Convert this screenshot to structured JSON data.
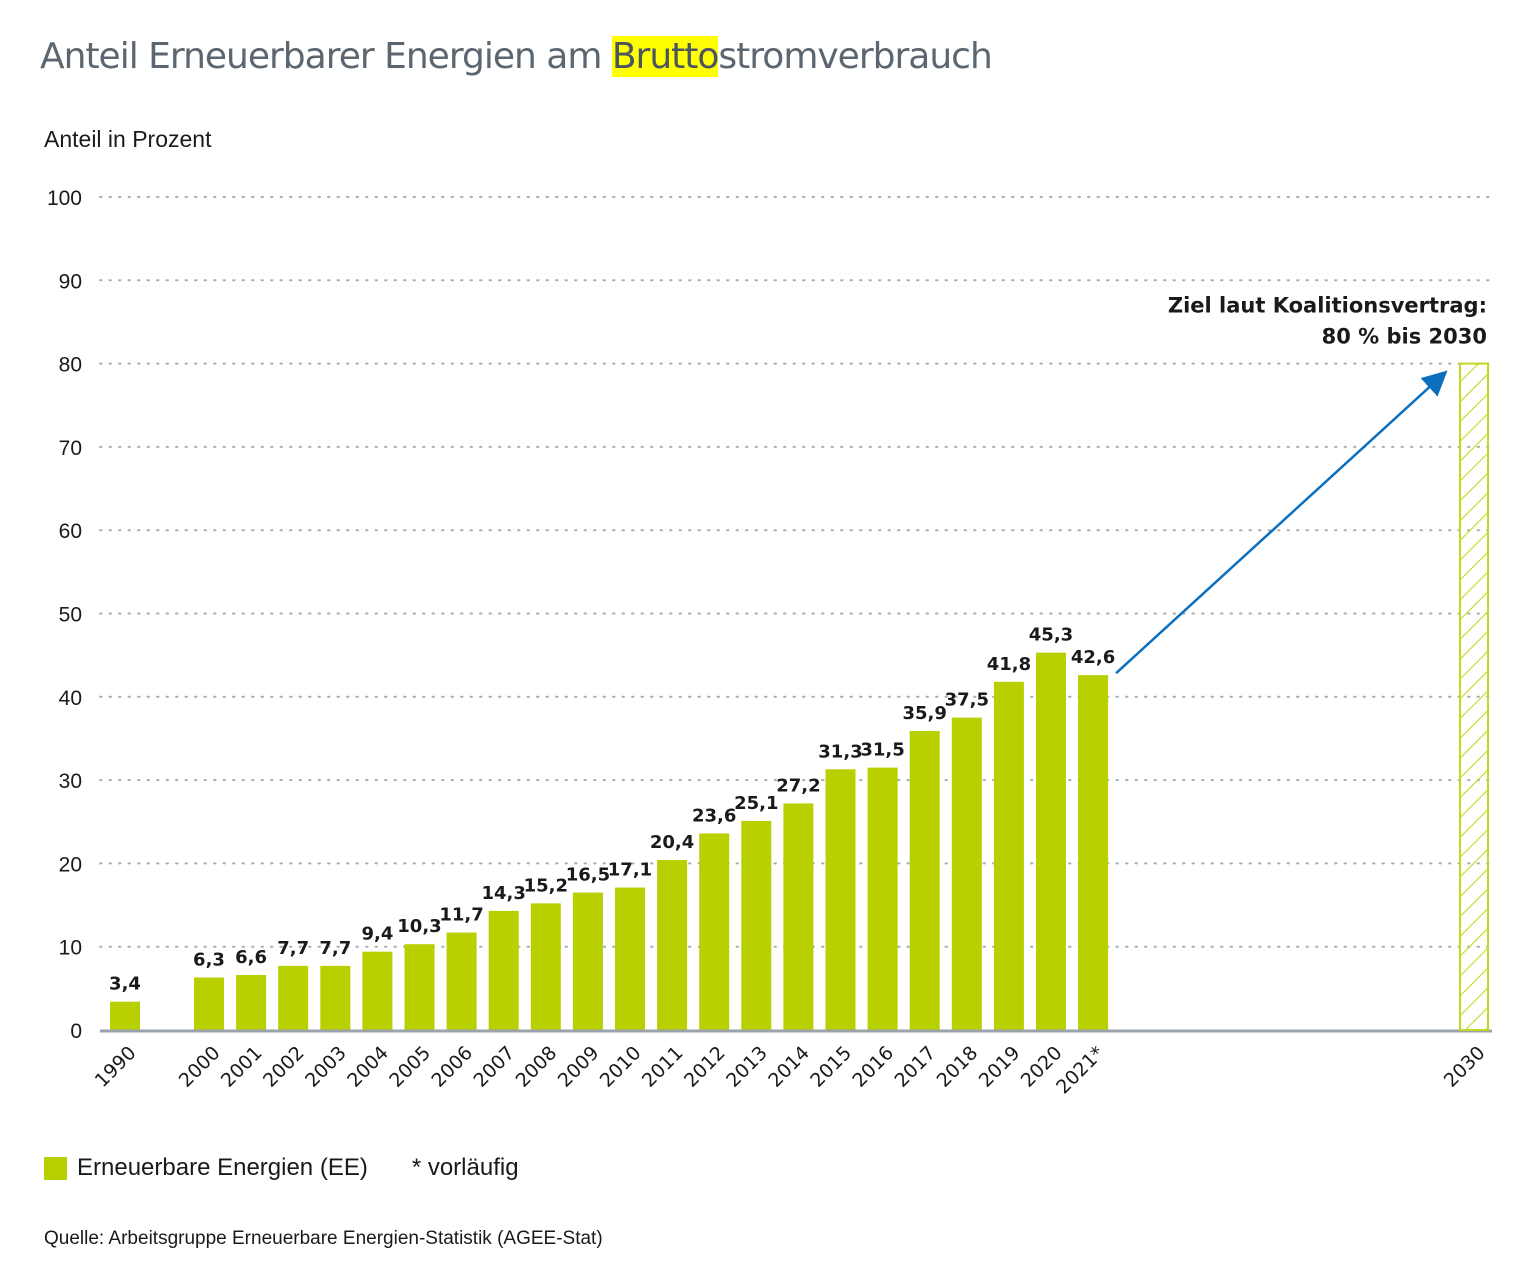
{
  "title": {
    "before": "Anteil Erneuerbarer Energien am ",
    "highlight": "Brutto",
    "after": "stromverbrauch"
  },
  "colors": {
    "bar": "#b8cf00",
    "target_hatch": "#c5d820",
    "arrow": "#0a6fbf",
    "grid": "#a7aeb5",
    "axis": "#9aa3ab",
    "highlight": "#ffff00"
  },
  "legend": {
    "series_label": "Erneuerbare Energien (EE)",
    "note": "* vorläufig"
  },
  "source": "Quelle: Arbeitsgruppe Erneuerbare Energien-Statistik (AGEE-Stat)",
  "chart_data": {
    "type": "bar",
    "title": "Anteil Erneuerbarer Energien am Bruttostromverbrauch",
    "xlabel": "",
    "ylabel": "Anteil in Prozent",
    "ylim": [
      0,
      100
    ],
    "yticks": [
      0,
      10,
      20,
      30,
      40,
      50,
      60,
      70,
      80,
      90,
      100
    ],
    "grid": true,
    "legend_position": "bottom-left",
    "categories": [
      "1990",
      "2000",
      "2001",
      "2002",
      "2003",
      "2004",
      "2005",
      "2006",
      "2007",
      "2008",
      "2009",
      "2010",
      "2011",
      "2012",
      "2013",
      "2014",
      "2015",
      "2016",
      "2017",
      "2018",
      "2019",
      "2020",
      "2021*"
    ],
    "series": [
      {
        "name": "Erneuerbare Energien (EE)",
        "values": [
          3.4,
          6.3,
          6.6,
          7.7,
          7.7,
          9.4,
          10.3,
          11.7,
          14.3,
          15.2,
          16.5,
          17.1,
          20.4,
          23.6,
          25.1,
          27.2,
          31.3,
          31.5,
          35.9,
          37.5,
          41.8,
          45.3,
          42.6
        ],
        "labels": [
          "3,4",
          "6,3",
          "6,6",
          "7,7",
          "7,7",
          "9,4",
          "10,3",
          "11,7",
          "14,3",
          "15,2",
          "16,5",
          "17,1",
          "20,4",
          "23,6",
          "25,1",
          "27,2",
          "31,3",
          "31,5",
          "35,9",
          "37,5",
          "41,8",
          "45,3",
          "42,6"
        ]
      }
    ],
    "target": {
      "category": "2030",
      "value": 80,
      "style": "hatched",
      "annotation_line1": "Ziel laut Koalitionsvertrag:",
      "annotation_line2": "80 % bis 2030"
    },
    "footnote": "* vorläufig"
  }
}
